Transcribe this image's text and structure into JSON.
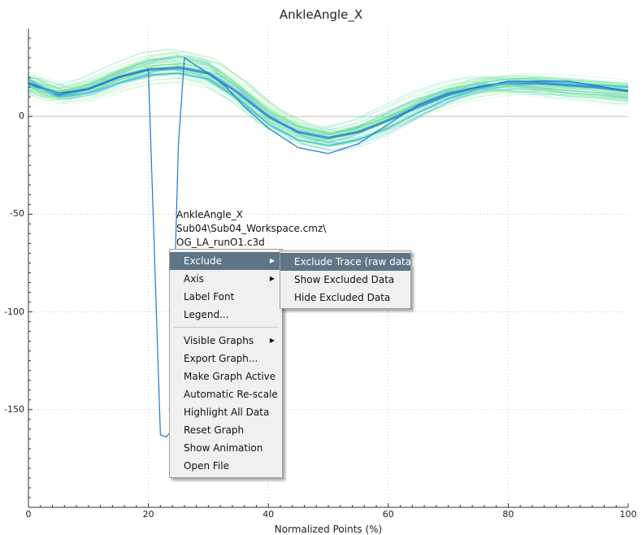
{
  "chart_data": {
    "type": "line",
    "title": "AnkleAngle_X",
    "xlabel": "Normalized Points (%)",
    "ylabel": "",
    "xlim": [
      0,
      100
    ],
    "ylim": [
      -200,
      45
    ],
    "xticks": [
      "0",
      "20",
      "40",
      "60",
      "80",
      "100"
    ],
    "yticks": [
      "0",
      "-50",
      "-100",
      "-150"
    ],
    "grid": true,
    "series": [
      {
        "x": [
          0,
          5,
          10,
          15,
          20,
          25,
          30,
          35,
          40,
          45,
          50,
          55,
          60,
          65,
          70,
          75,
          80,
          85,
          90,
          95,
          100
        ],
        "values": [
          17,
          11,
          14,
          20,
          24,
          25,
          22,
          12,
          0,
          -8,
          -11,
          -8,
          -2,
          5,
          11,
          15,
          17,
          17,
          16,
          15,
          13
        ]
      },
      {
        "x": [
          0,
          5,
          10,
          15,
          20,
          25,
          30,
          35,
          40,
          45,
          50,
          55,
          60,
          65,
          70,
          75,
          80,
          85,
          90,
          95,
          100
        ],
        "values": [
          15,
          12,
          16,
          23,
          29,
          31,
          27,
          16,
          3,
          -5,
          -9,
          -5,
          2,
          9,
          14,
          17,
          16,
          14,
          12,
          11,
          9
        ]
      },
      {
        "x": [
          0,
          5,
          10,
          15,
          20,
          25,
          30,
          35,
          40,
          45,
          50,
          55,
          60,
          65,
          70,
          75,
          80,
          85,
          90,
          95,
          100
        ],
        "values": [
          19,
          10,
          12,
          17,
          21,
          22,
          19,
          9,
          -4,
          -12,
          -15,
          -12,
          -6,
          2,
          9,
          14,
          17,
          18,
          17,
          16,
          15
        ]
      },
      {
        "x": [
          0,
          5,
          10,
          15,
          20,
          22,
          23,
          24,
          24.5,
          25,
          26,
          28,
          30,
          33,
          36,
          40,
          45,
          50,
          55,
          60,
          65,
          70,
          80,
          90,
          100
        ],
        "values": [
          17,
          12,
          14,
          20,
          24,
          -163,
          -164,
          -160,
          -70,
          -15,
          30,
          26,
          22,
          15,
          5,
          -6,
          -16,
          -19,
          -14,
          -4,
          6,
          12,
          18,
          18,
          13
        ]
      }
    ],
    "tooltip": [
      "AnkleAngle_X",
      "Sub04\\Sub04_Workspace.cmz\\",
      "OG_LA_runO1.c3d"
    ]
  },
  "context_menu": {
    "items": [
      {
        "label": "Exclude",
        "has_submenu": true,
        "highlighted": true
      },
      {
        "label": "Axis",
        "has_submenu": true
      },
      {
        "label": "Label Font"
      },
      {
        "label": "Legend..."
      },
      {
        "label": "Visible Graphs",
        "has_submenu": true
      },
      {
        "label": "Export Graph..."
      },
      {
        "label": "Make Graph Active"
      },
      {
        "label": "Automatic Re-scale"
      },
      {
        "label": "Highlight All Data"
      },
      {
        "label": "Reset Graph"
      },
      {
        "label": "Show Animation"
      },
      {
        "label": "Open File"
      }
    ]
  },
  "submenu": {
    "items": [
      {
        "label": "Exclude Trace (raw data)",
        "highlighted": true
      },
      {
        "label": "Show Excluded Data"
      },
      {
        "label": "Hide Excluded Data"
      }
    ]
  }
}
